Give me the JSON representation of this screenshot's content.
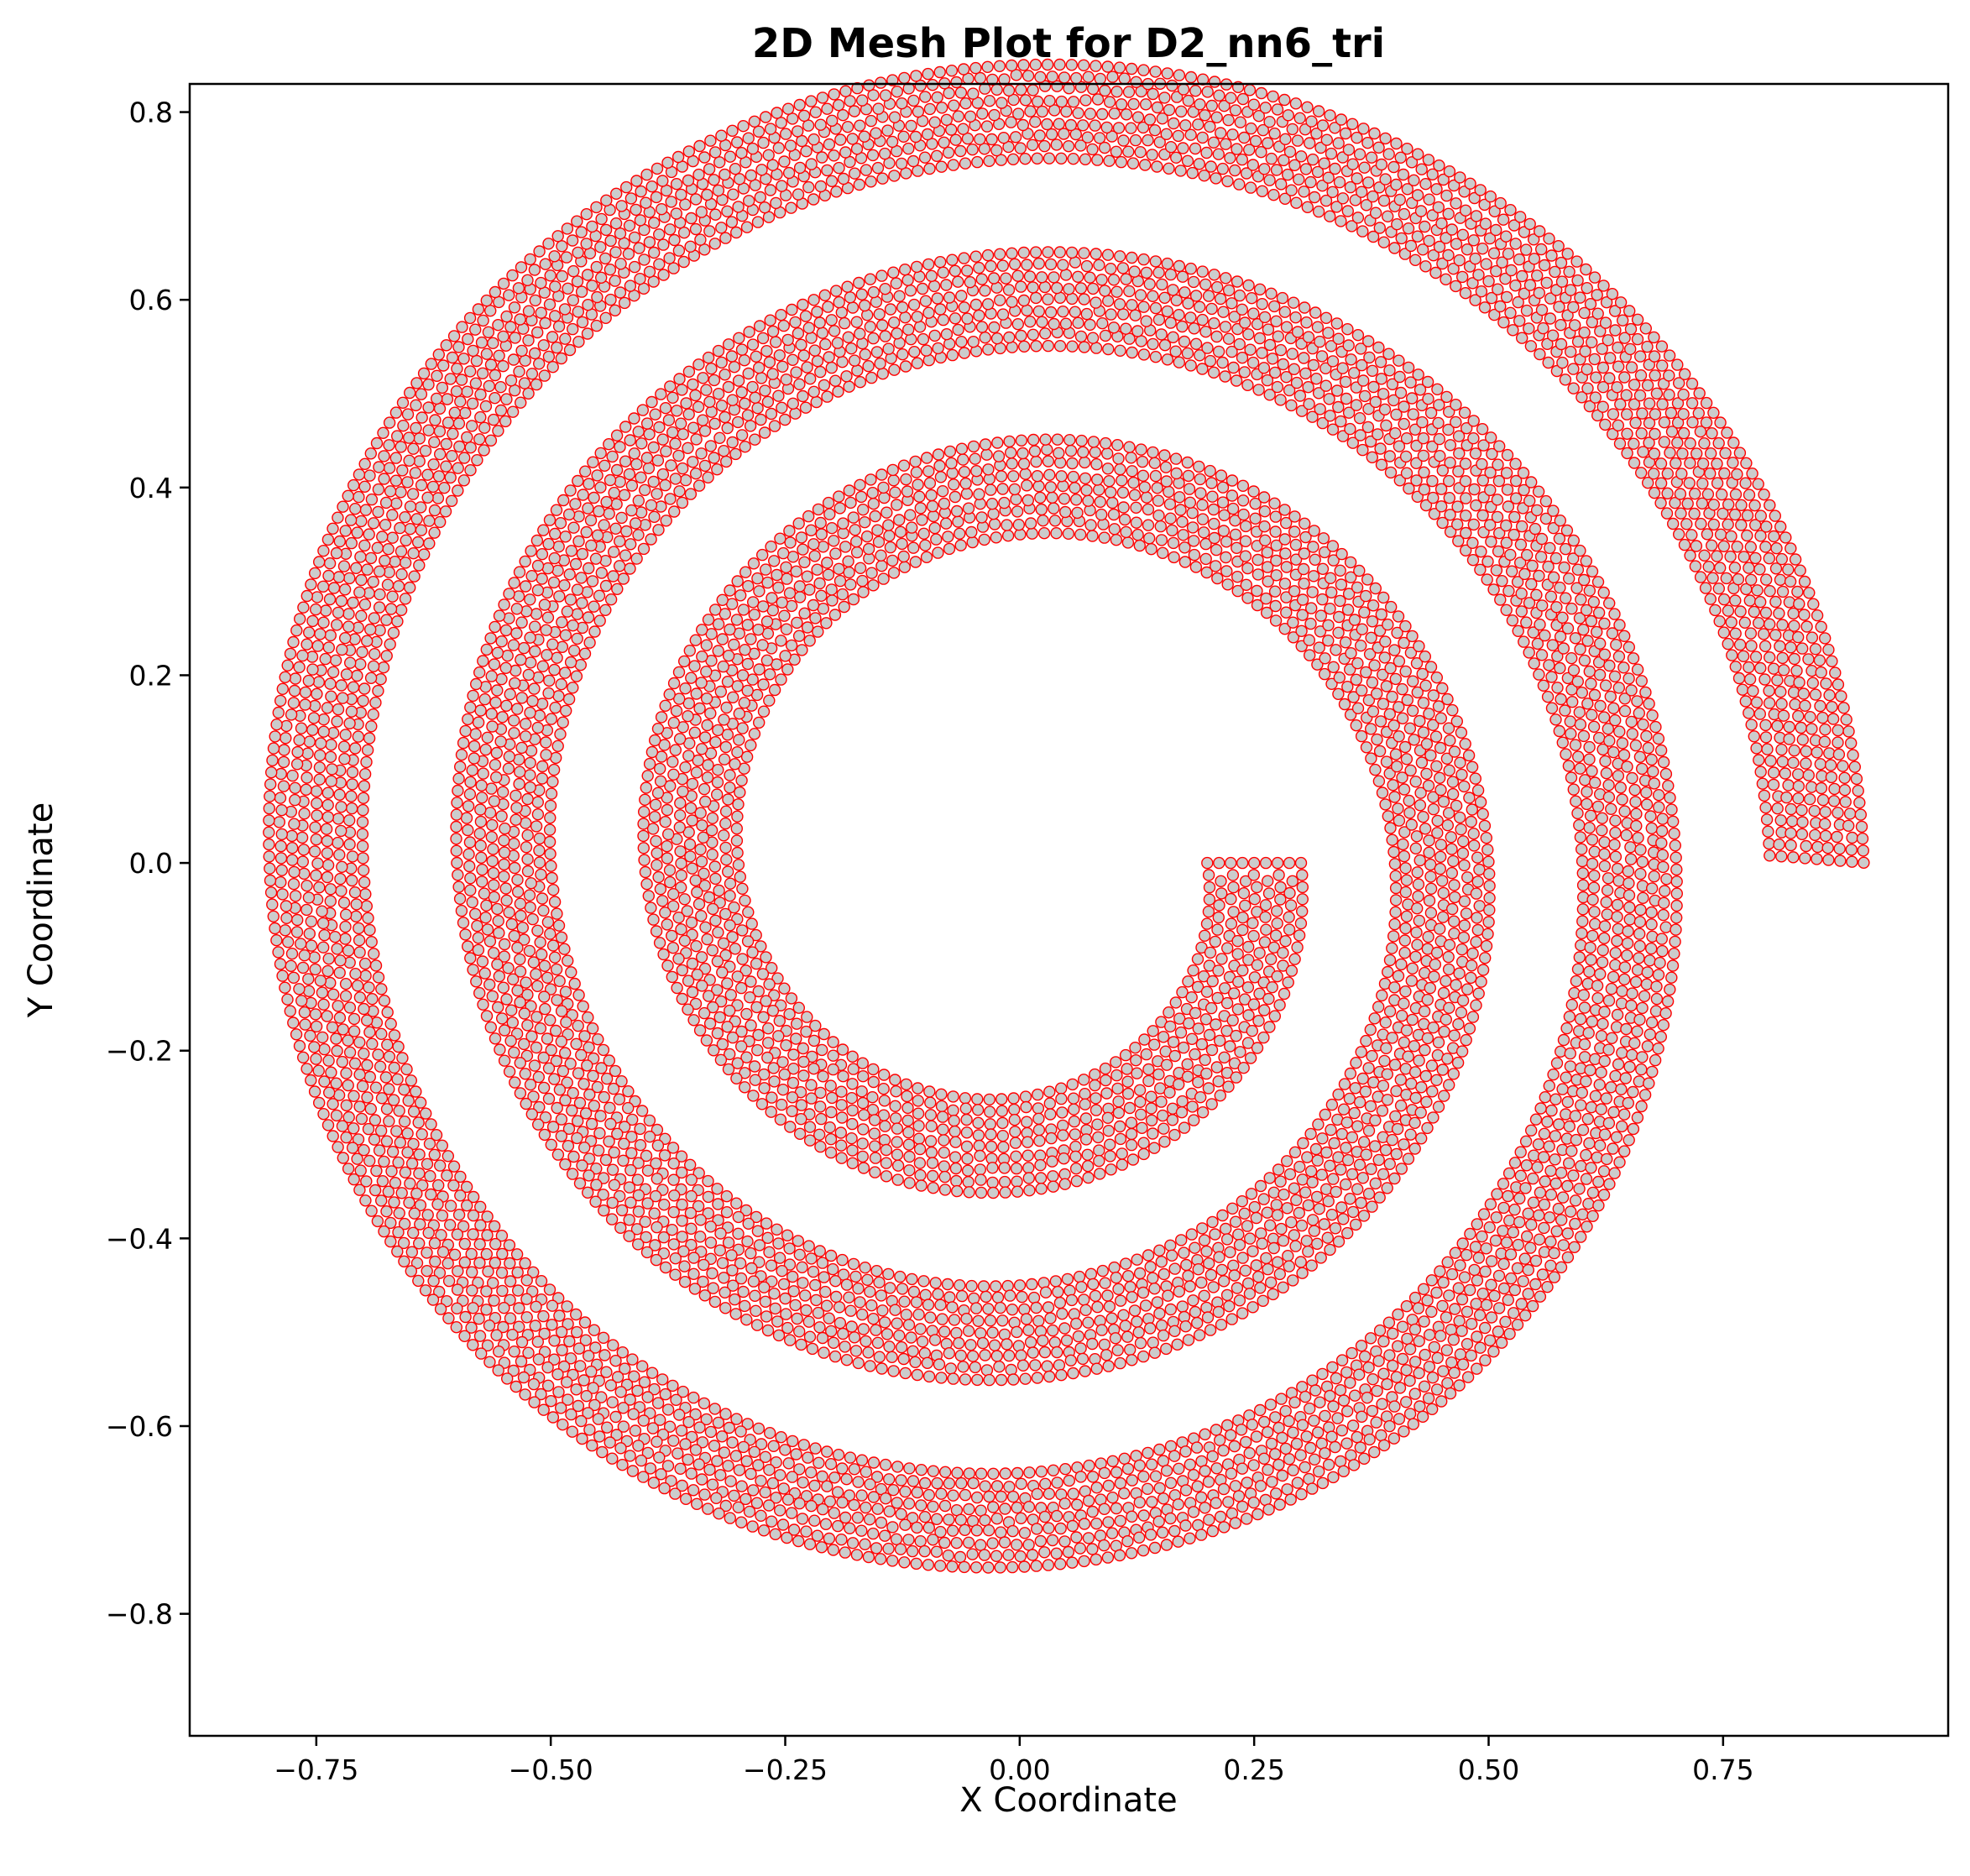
{
  "chart_data": {
    "type": "scatter",
    "title": "2D Mesh Plot for D2_nn6_tri",
    "xlabel": "X Coordinate",
    "ylabel": "Y Coordinate",
    "xlim": [
      -0.885,
      0.99
    ],
    "ylim": [
      -0.93,
      0.83
    ],
    "xticks": [
      -0.75,
      -0.5,
      -0.25,
      0.0,
      0.25,
      0.5,
      0.75
    ],
    "xtick_labels": [
      "−0.75",
      "−0.50",
      "−0.25",
      "0.00",
      "0.25",
      "0.50",
      "0.75"
    ],
    "yticks": [
      -0.8,
      -0.6,
      -0.4,
      -0.2,
      0.0,
      0.2,
      0.4,
      0.6,
      0.8
    ],
    "ytick_labels": [
      "−0.8",
      "−0.6",
      "−0.4",
      "−0.2",
      "0.0",
      "0.2",
      "0.4",
      "0.6",
      "0.8"
    ],
    "grid": false,
    "legend": false,
    "marker": {
      "shape": "circle",
      "face_color": "#cccccc",
      "edge_color": "#ff0000"
    },
    "mesh": {
      "shape": "spiral band",
      "inner_radius_start": 0.2,
      "outer_radius_start": 0.3,
      "radius_growth_per_turn": 0.2,
      "turns": 3,
      "band_width": 0.1,
      "start_x_range": [
        0.2,
        0.3
      ],
      "end_x_range": [
        0.8,
        0.9
      ],
      "node_spacing": 0.0128
    }
  }
}
